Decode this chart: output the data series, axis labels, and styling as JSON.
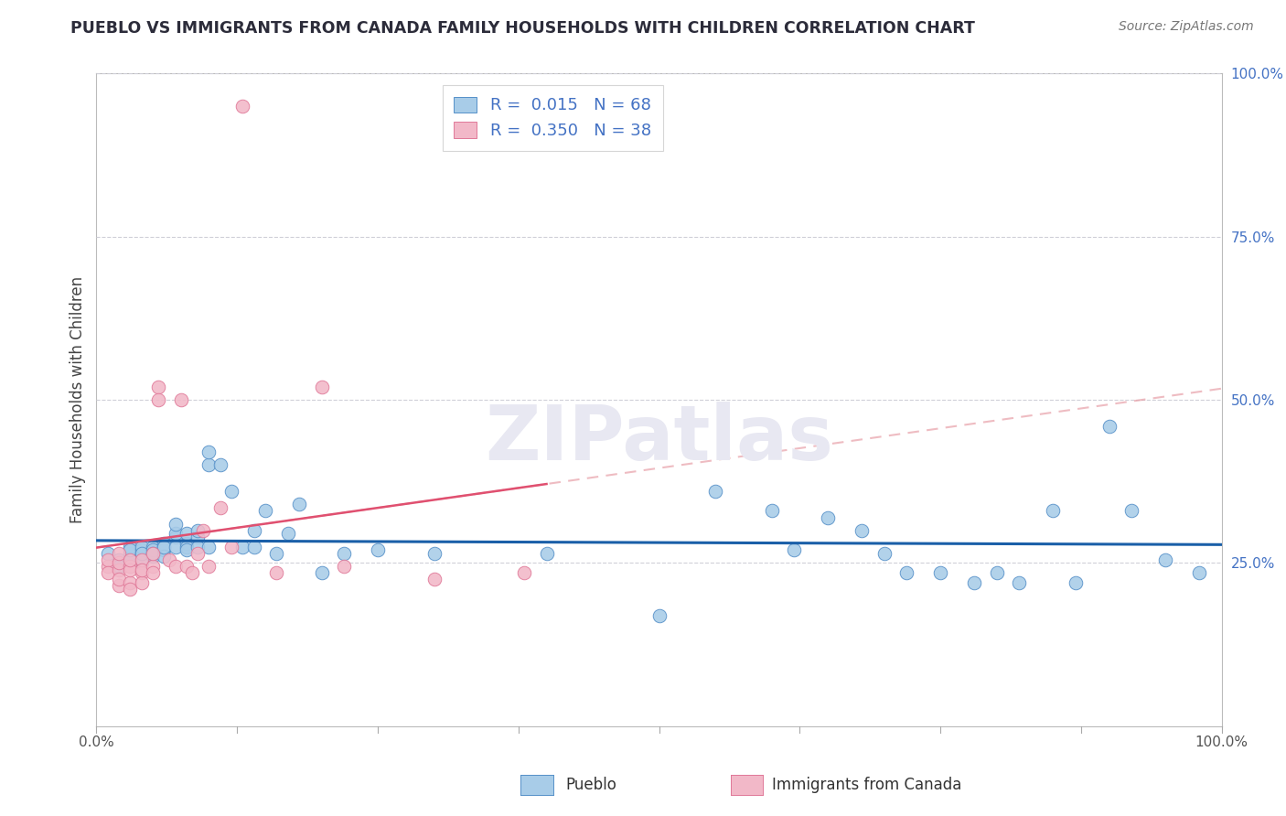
{
  "title": "PUEBLO VS IMMIGRANTS FROM CANADA FAMILY HOUSEHOLDS WITH CHILDREN CORRELATION CHART",
  "source": "Source: ZipAtlas.com",
  "ylabel": "Family Households with Children",
  "color_blue": "#a8cce8",
  "color_pink": "#f2b8c8",
  "color_blue_edge": "#5590c8",
  "color_pink_edge": "#e07898",
  "trendline_blue_color": "#1a5fa8",
  "trendline_pink_solid_color": "#e05070",
  "trendline_pink_dash_color": "#e8a0a8",
  "axis_label_color": "#4472c4",
  "title_color": "#2c2c3a",
  "grid_color": "#d0d0d8",
  "watermark_color": "#e8e8f2",
  "legend_label_color": "#4472c4",
  "pueblo_x": [
    0.01,
    0.02,
    0.02,
    0.03,
    0.03,
    0.03,
    0.03,
    0.04,
    0.04,
    0.04,
    0.04,
    0.04,
    0.05,
    0.05,
    0.05,
    0.05,
    0.05,
    0.06,
    0.06,
    0.06,
    0.06,
    0.06,
    0.07,
    0.07,
    0.07,
    0.07,
    0.08,
    0.08,
    0.08,
    0.08,
    0.09,
    0.09,
    0.09,
    0.1,
    0.1,
    0.1,
    0.11,
    0.12,
    0.13,
    0.14,
    0.14,
    0.15,
    0.16,
    0.17,
    0.18,
    0.2,
    0.22,
    0.25,
    0.3,
    0.4,
    0.5,
    0.55,
    0.6,
    0.62,
    0.65,
    0.68,
    0.7,
    0.72,
    0.75,
    0.78,
    0.8,
    0.82,
    0.85,
    0.87,
    0.9,
    0.92,
    0.95,
    0.98
  ],
  "pueblo_y": [
    0.265,
    0.255,
    0.245,
    0.265,
    0.275,
    0.255,
    0.27,
    0.265,
    0.27,
    0.275,
    0.25,
    0.265,
    0.265,
    0.26,
    0.275,
    0.27,
    0.265,
    0.28,
    0.27,
    0.275,
    0.26,
    0.275,
    0.29,
    0.295,
    0.31,
    0.275,
    0.28,
    0.295,
    0.275,
    0.27,
    0.29,
    0.3,
    0.275,
    0.4,
    0.42,
    0.275,
    0.4,
    0.36,
    0.275,
    0.3,
    0.275,
    0.33,
    0.265,
    0.295,
    0.34,
    0.235,
    0.265,
    0.27,
    0.265,
    0.265,
    0.17,
    0.36,
    0.33,
    0.27,
    0.32,
    0.3,
    0.265,
    0.235,
    0.235,
    0.22,
    0.235,
    0.22,
    0.33,
    0.22,
    0.46,
    0.33,
    0.255,
    0.235
  ],
  "canada_x": [
    0.01,
    0.01,
    0.01,
    0.02,
    0.02,
    0.02,
    0.02,
    0.02,
    0.03,
    0.03,
    0.03,
    0.03,
    0.03,
    0.04,
    0.04,
    0.04,
    0.04,
    0.05,
    0.05,
    0.05,
    0.055,
    0.055,
    0.065,
    0.07,
    0.075,
    0.08,
    0.085,
    0.09,
    0.095,
    0.1,
    0.11,
    0.12,
    0.13,
    0.16,
    0.2,
    0.22,
    0.3,
    0.38
  ],
  "canada_y": [
    0.245,
    0.255,
    0.235,
    0.215,
    0.24,
    0.225,
    0.25,
    0.265,
    0.245,
    0.22,
    0.24,
    0.21,
    0.255,
    0.235,
    0.255,
    0.22,
    0.24,
    0.245,
    0.235,
    0.265,
    0.52,
    0.5,
    0.255,
    0.245,
    0.5,
    0.245,
    0.235,
    0.265,
    0.3,
    0.245,
    0.335,
    0.275,
    0.95,
    0.235,
    0.52,
    0.245,
    0.225,
    0.235
  ],
  "xlim": [
    0,
    1
  ],
  "ylim": [
    0,
    1
  ],
  "yticks": [
    0.25,
    0.5,
    0.75,
    1.0
  ],
  "ytick_labels": [
    "25.0%",
    "50.0%",
    "75.0%",
    "100.0%"
  ],
  "xticks": [
    0,
    1
  ],
  "xtick_labels": [
    "0.0%",
    "100.0%"
  ],
  "bottom_labels": [
    "Pueblo",
    "Immigrants from Canada"
  ],
  "legend_labels": [
    "R =  0.015   N = 68",
    "R =  0.350   N = 38"
  ]
}
